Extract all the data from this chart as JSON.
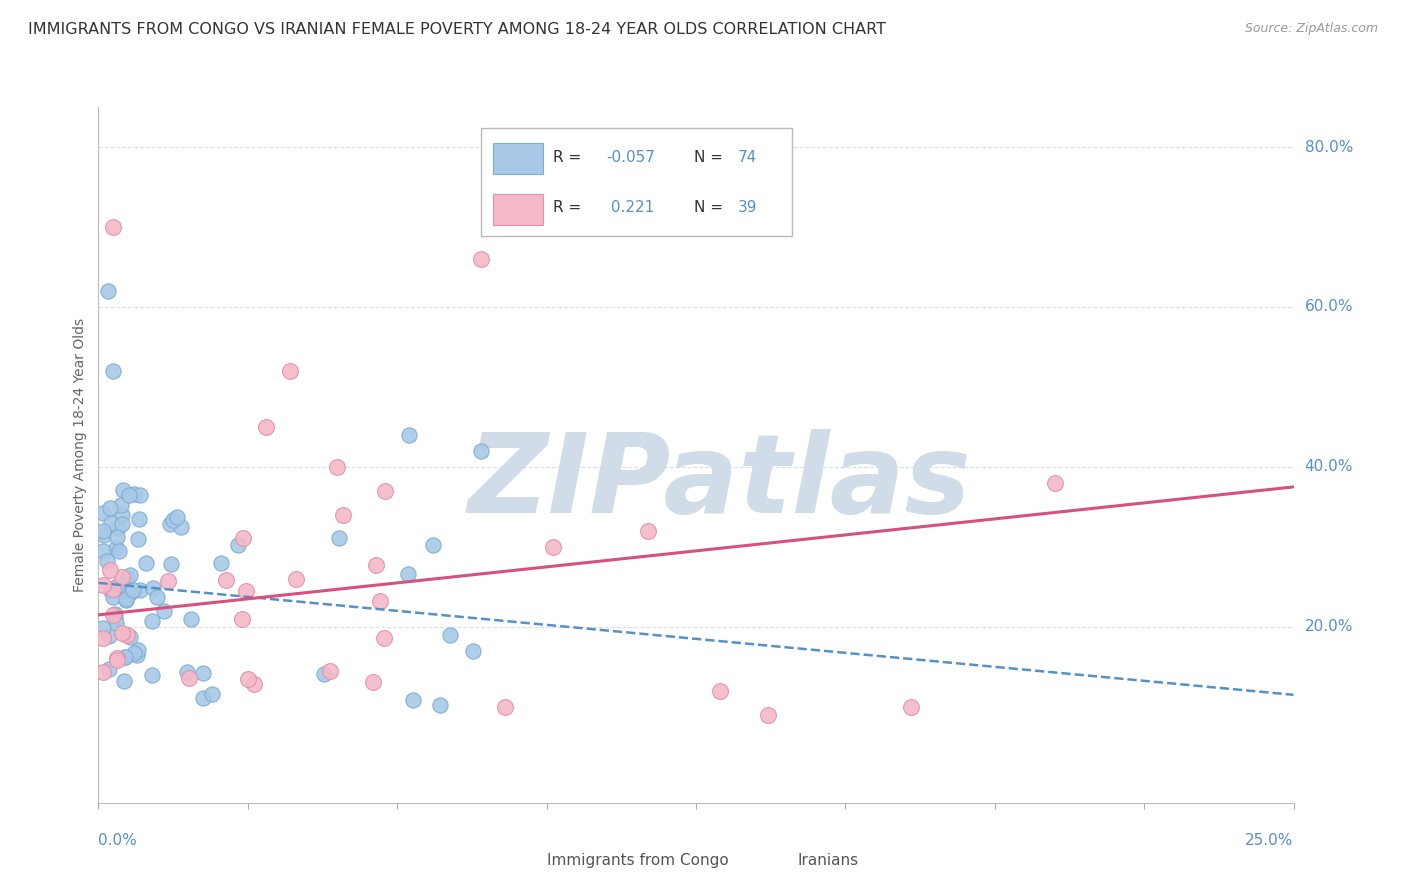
{
  "title": "IMMIGRANTS FROM CONGO VS IRANIAN FEMALE POVERTY AMONG 18-24 YEAR OLDS CORRELATION CHART",
  "source": "Source: ZipAtlas.com",
  "ylabel_label": "Female Poverty Among 18-24 Year Olds",
  "xlim": [
    0.0,
    0.25
  ],
  "ylim": [
    -0.02,
    0.85
  ],
  "congo_R": -0.057,
  "congo_N": 74,
  "iranian_R": 0.221,
  "iranian_N": 39,
  "blue_dot_color": "#a8c8e8",
  "blue_dot_edge": "#7aaed0",
  "pink_dot_color": "#f4b8c8",
  "pink_dot_edge": "#e090a8",
  "blue_line_color": "#5590c8",
  "pink_line_color": "#d85080",
  "grid_color": "#d8dde8",
  "watermark_color": "#d0dce8",
  "axis_label_color": "#5590c8",
  "text_color": "#444444",
  "legend_label_congo": "Immigrants from Congo",
  "legend_label_iranian": "Iranians",
  "blue_trend_x0": 0.0,
  "blue_trend_y0": 0.255,
  "blue_trend_x1": 0.25,
  "blue_trend_y1": 0.115,
  "pink_trend_x0": 0.0,
  "pink_trend_y0": 0.215,
  "pink_trend_x1": 0.25,
  "pink_trend_y1": 0.375
}
